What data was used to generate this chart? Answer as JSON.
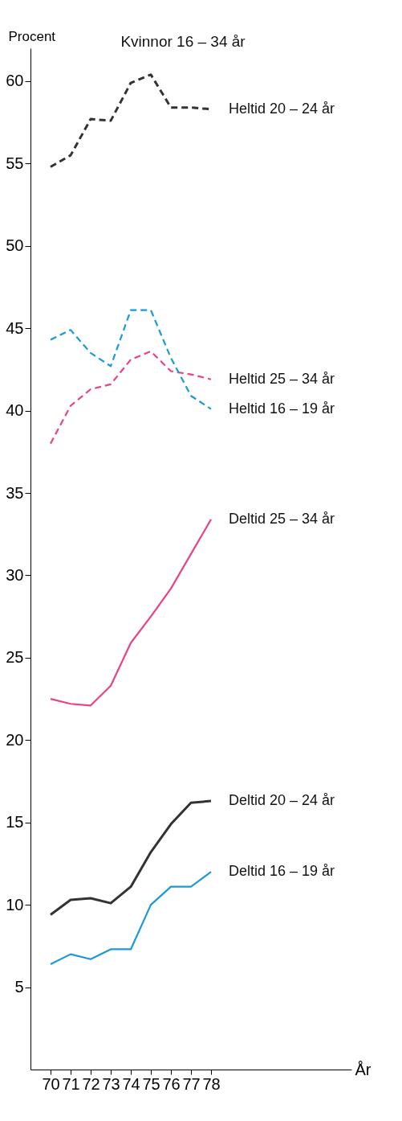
{
  "chart_data": {
    "type": "line",
    "title": "Kvinnor 16 – 34 år",
    "xlabel": "År",
    "ylabel": "Procent",
    "x": [
      70,
      71,
      72,
      73,
      74,
      75,
      76,
      77,
      78
    ],
    "xlim": [
      69,
      85
    ],
    "xticks": [
      70,
      71,
      72,
      73,
      74,
      75,
      76,
      77,
      78
    ],
    "ylim": [
      0,
      62
    ],
    "yticks": [
      5,
      10,
      15,
      20,
      25,
      30,
      35,
      40,
      45,
      50,
      55,
      60
    ],
    "marker": "none",
    "series": [
      {
        "name": "Heltid 20 – 24 år",
        "color": "#333333",
        "line_style": "dashed",
        "values": [
          54.8,
          55.5,
          57.7,
          57.6,
          59.9,
          60.4,
          58.4,
          58.4,
          58.3
        ]
      },
      {
        "name": "Heltid 25 – 34 år",
        "color": "#e8428a",
        "line_style": "dashed",
        "values": [
          38.0,
          40.3,
          41.3,
          41.6,
          43.1,
          43.6,
          42.4,
          42.2,
          41.9
        ]
      },
      {
        "name": "Heltid 16 – 19 år",
        "color": "#1a9ad6",
        "line_style": "dashed",
        "values": [
          44.3,
          44.9,
          43.5,
          42.7,
          46.1,
          46.1,
          43.2,
          40.9,
          40.1
        ]
      },
      {
        "name": "Deltid 25 – 34 år",
        "color": "#e8428a",
        "line_style": "solid",
        "values": [
          22.5,
          22.2,
          22.1,
          23.3,
          25.9,
          27.5,
          29.2,
          31.3,
          33.4
        ]
      },
      {
        "name": "Deltid 20 – 24 år",
        "color": "#333333",
        "line_style": "solid",
        "values": [
          9.4,
          10.3,
          10.4,
          10.1,
          11.1,
          13.2,
          14.9,
          16.2,
          16.3
        ]
      },
      {
        "name": "Deltid 16 – 19 år",
        "color": "#1a9ad6",
        "line_style": "solid",
        "values": [
          6.4,
          7.0,
          6.7,
          7.3,
          7.3,
          10.0,
          11.1,
          11.1,
          12.0
        ]
      }
    ]
  }
}
